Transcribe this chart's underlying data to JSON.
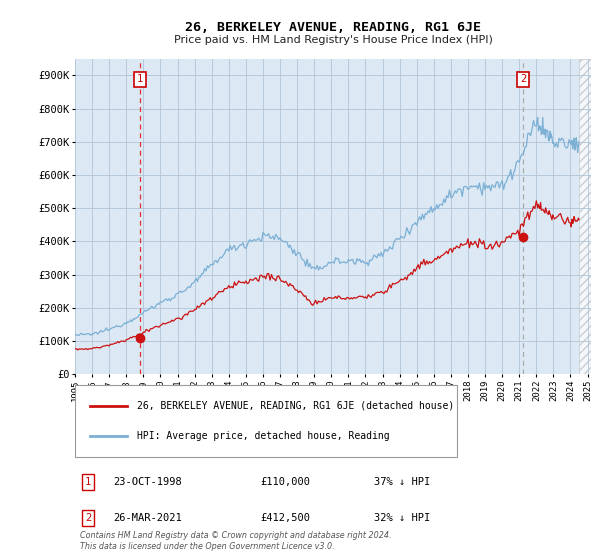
{
  "title": "26, BERKELEY AVENUE, READING, RG1 6JE",
  "subtitle": "Price paid vs. HM Land Registry's House Price Index (HPI)",
  "ylim": [
    0,
    950000
  ],
  "yticks": [
    0,
    100000,
    200000,
    300000,
    400000,
    500000,
    600000,
    700000,
    800000,
    900000
  ],
  "ytick_labels": [
    "£0",
    "£100K",
    "£200K",
    "£300K",
    "£400K",
    "£500K",
    "£600K",
    "£700K",
    "£800K",
    "£900K"
  ],
  "hpi_color": "#7bafd4",
  "price_color": "#cc1111",
  "marker_color": "#cc1111",
  "vline1_color": "#dd3333",
  "vline2_color": "#aaaaaa",
  "chart_bg": "#dce9f5",
  "background_color": "#ffffff",
  "grid_color": "#b0c4d8",
  "sale1_x": 1998.81,
  "sale1_y": 110000,
  "sale1_label": "1",
  "sale1_date": "23-OCT-1998",
  "sale1_price": "£110,000",
  "sale1_note": "37% ↓ HPI",
  "sale2_x": 2021.23,
  "sale2_y": 412500,
  "sale2_label": "2",
  "sale2_date": "26-MAR-2021",
  "sale2_price": "£412,500",
  "sale2_note": "32% ↓ HPI",
  "legend_label1": "26, BERKELEY AVENUE, READING, RG1 6JE (detached house)",
  "legend_label2": "HPI: Average price, detached house, Reading",
  "footer": "Contains HM Land Registry data © Crown copyright and database right 2024.\nThis data is licensed under the Open Government Licence v3.0.",
  "xlim_left": 1995.0,
  "xlim_right": 2025.2,
  "hatch_start": 2024.5,
  "xtick_years": [
    1995,
    1996,
    1997,
    1998,
    1999,
    2000,
    2001,
    2002,
    2003,
    2004,
    2005,
    2006,
    2007,
    2008,
    2009,
    2010,
    2011,
    2012,
    2013,
    2014,
    2015,
    2016,
    2017,
    2018,
    2019,
    2020,
    2021,
    2022,
    2023,
    2024,
    2025
  ]
}
